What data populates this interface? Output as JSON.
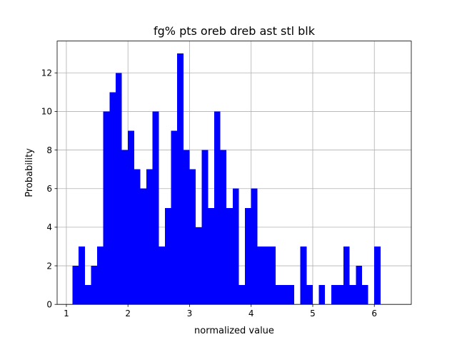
{
  "chart_data": {
    "type": "bar",
    "title": "fg% pts oreb dreb ast stl blk",
    "xlabel": "normalized value",
    "ylabel": "Probability",
    "xlim": [
      0.85,
      6.6
    ],
    "ylim": [
      0,
      13.65
    ],
    "xticks": [
      1,
      2,
      3,
      4,
      5,
      6
    ],
    "yticks": [
      0,
      2,
      4,
      6,
      8,
      10,
      12
    ],
    "grid": true,
    "bar_color": "#0000ff",
    "bin_start": 1.1,
    "bin_width": 0.1,
    "values": [
      2,
      3,
      1,
      2,
      3,
      10,
      11,
      12,
      8,
      9,
      7,
      6,
      7,
      10,
      3,
      5,
      9,
      13,
      8,
      7,
      4,
      8,
      5,
      10,
      8,
      5,
      6,
      1,
      5,
      6,
      3,
      3,
      3,
      1,
      1,
      1,
      0,
      3,
      1,
      0,
      1,
      0,
      1,
      1,
      3,
      1,
      2,
      1,
      0,
      3
    ]
  }
}
